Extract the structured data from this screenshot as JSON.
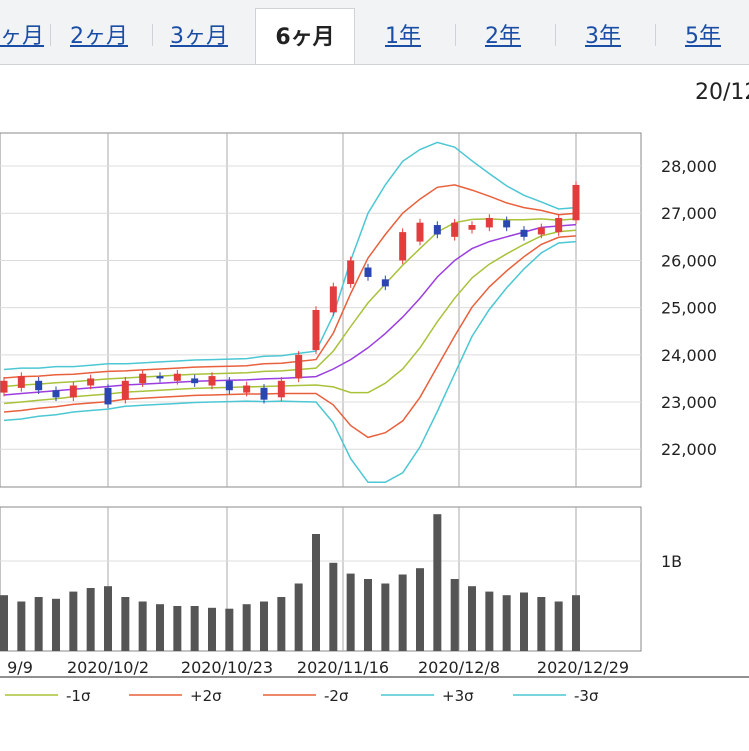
{
  "tabs": [
    {
      "label": "ヶ月",
      "active": false
    },
    {
      "label": "2ヶ月",
      "active": false
    },
    {
      "label": "3ヶ月",
      "active": false
    },
    {
      "label": "6ヶ月",
      "active": true
    },
    {
      "label": "1年",
      "active": false
    },
    {
      "label": "2年",
      "active": false
    },
    {
      "label": "3年",
      "active": false
    },
    {
      "label": "5年",
      "active": false
    }
  ],
  "date_label": "20/12",
  "chart_data": {
    "type": "candlestick",
    "x_ticks": [
      "9/9",
      "2020/10/2",
      "2020/10/23",
      "2020/11/16",
      "2020/12/8",
      "2020/12/29"
    ],
    "y_ticks": [
      "28,000",
      "27,000",
      "26,000",
      "25,000",
      "24,000",
      "23,000",
      "22,000"
    ],
    "y_range": [
      21200,
      28700
    ],
    "volume_ticks": [
      "1B"
    ],
    "legend": [
      {
        "label": "-1σ",
        "color": "#a8c23a"
      },
      {
        "label": "+2σ",
        "color": "#e8603c"
      },
      {
        "label": "-2σ",
        "color": "#e8603c"
      },
      {
        "label": "+3σ",
        "color": "#4cc7d3"
      },
      {
        "label": "-3σ",
        "color": "#4cc7d3"
      }
    ],
    "colors": {
      "up": "#e33c3c",
      "down": "#2a46b0",
      "ma": "#9b3ee0",
      "sigma1": "#a8c23a",
      "sigma2": "#e8603c",
      "sigma3": "#4cc7d3",
      "volume": "#555555",
      "grid": "#aaaaaa"
    },
    "ma": [
      23150,
      23180,
      23210,
      23240,
      23270,
      23300,
      23330,
      23360,
      23380,
      23400,
      23420,
      23440,
      23450,
      23460,
      23470,
      23490,
      23500,
      23520,
      23540,
      23700,
      23900,
      24150,
      24450,
      24800,
      25200,
      25650,
      26000,
      26250,
      26400,
      26500,
      26600,
      26700,
      26730,
      26760
    ],
    "sigma": [
      180,
      180,
      170,
      170,
      160,
      160,
      160,
      150,
      150,
      150,
      150,
      150,
      150,
      150,
      150,
      160,
      160,
      170,
      180,
      380,
      700,
      950,
      1050,
      1100,
      1050,
      950,
      800,
      620,
      480,
      360,
      260,
      180,
      120,
      120
    ],
    "candles": [
      [
        23200,
        23450
      ],
      [
        23300,
        23550
      ],
      [
        23450,
        23250
      ],
      [
        23250,
        23100
      ],
      [
        23100,
        23350
      ],
      [
        23350,
        23500
      ],
      [
        23300,
        22950
      ],
      [
        23050,
        23450
      ],
      [
        23400,
        23600
      ],
      [
        23550,
        23500
      ],
      [
        23450,
        23600
      ],
      [
        23500,
        23400
      ],
      [
        23350,
        23550
      ],
      [
        23450,
        23250
      ],
      [
        23200,
        23350
      ],
      [
        23300,
        23050
      ],
      [
        23100,
        23450
      ],
      [
        23500,
        24000
      ],
      [
        24100,
        24950
      ],
      [
        24900,
        25450
      ],
      [
        25500,
        26000
      ],
      [
        25850,
        25650
      ],
      [
        25600,
        25450
      ],
      [
        26000,
        26600
      ],
      [
        26400,
        26800
      ],
      [
        26750,
        26550
      ],
      [
        26500,
        26800
      ],
      [
        26650,
        26750
      ],
      [
        26700,
        26900
      ],
      [
        26850,
        26700
      ],
      [
        26650,
        26500
      ],
      [
        26550,
        26700
      ],
      [
        26600,
        26900
      ],
      [
        26850,
        27600
      ]
    ],
    "volume": [
      0.62,
      0.55,
      0.6,
      0.58,
      0.66,
      0.7,
      0.72,
      0.6,
      0.55,
      0.52,
      0.5,
      0.5,
      0.48,
      0.47,
      0.52,
      0.55,
      0.6,
      0.75,
      1.3,
      0.98,
      0.86,
      0.8,
      0.75,
      0.85,
      0.92,
      1.52,
      0.8,
      0.72,
      0.66,
      0.62,
      0.65,
      0.6,
      0.55,
      0.62
    ]
  }
}
